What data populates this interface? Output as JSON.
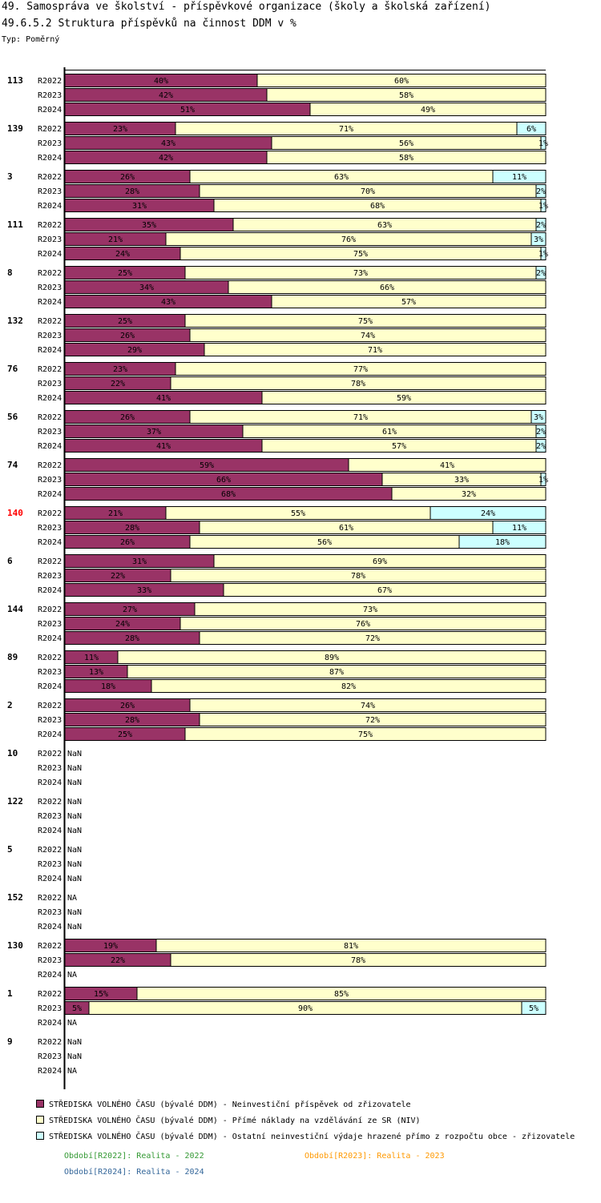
{
  "header": {
    "title": "49. Samospráva ve školství - příspěvkové organizace (školy a školská zařízení)",
    "subtitle": "49.6.5.2 Struktura příspěvků na činnost DDM v %",
    "type_label": "Typ: Poměrný"
  },
  "colors": {
    "series1": "#993366",
    "series2": "#ffffcc",
    "series3": "#ccffff",
    "highlight_group": "#ff0000",
    "period_2022": "#339933",
    "period_2023": "#ff9900",
    "period_2024": "#336699"
  },
  "chart_data": {
    "type": "bar",
    "orientation": "horizontal",
    "stacked": "percent",
    "series": [
      {
        "name": "STŘEDISKA VOLNÉHO ČASU (bývalé DDM)  - Neinvestiční příspěvek od zřizovatele"
      },
      {
        "name": "STŘEDISKA VOLNÉHO ČASU (bývalé DDM)  - Přímé náklady na vzdělávání ze SR (NIV)"
      },
      {
        "name": "STŘEDISKA VOLNÉHO ČASU (bývalé DDM)  - Ostatní neinvestiční výdaje hrazené přímo z rozpočtu obce - zřizovatele"
      }
    ],
    "groups": [
      {
        "label": "113",
        "rows": [
          {
            "period": "R2022",
            "values": [
              40,
              60,
              0
            ]
          },
          {
            "period": "R2023",
            "values": [
              42,
              58,
              0
            ]
          },
          {
            "period": "R2024",
            "values": [
              51,
              49,
              0
            ]
          }
        ]
      },
      {
        "label": "139",
        "rows": [
          {
            "period": "R2022",
            "values": [
              23,
              71,
              6
            ]
          },
          {
            "period": "R2023",
            "values": [
              43,
              56,
              1
            ]
          },
          {
            "period": "R2024",
            "values": [
              42,
              58,
              0
            ]
          }
        ]
      },
      {
        "label": "3",
        "rows": [
          {
            "period": "R2022",
            "values": [
              26,
              63,
              11
            ]
          },
          {
            "period": "R2023",
            "values": [
              28,
              70,
              2
            ]
          },
          {
            "period": "R2024",
            "values": [
              31,
              68,
              1
            ]
          }
        ]
      },
      {
        "label": "111",
        "rows": [
          {
            "period": "R2022",
            "values": [
              35,
              63,
              2
            ]
          },
          {
            "period": "R2023",
            "values": [
              21,
              76,
              3
            ]
          },
          {
            "period": "R2024",
            "values": [
              24,
              75,
              1
            ]
          }
        ]
      },
      {
        "label": "8",
        "rows": [
          {
            "period": "R2022",
            "values": [
              25,
              73,
              2
            ]
          },
          {
            "period": "R2023",
            "values": [
              34,
              66,
              0
            ]
          },
          {
            "period": "R2024",
            "values": [
              43,
              57,
              0
            ]
          }
        ]
      },
      {
        "label": "132",
        "rows": [
          {
            "period": "R2022",
            "values": [
              25,
              75,
              0
            ]
          },
          {
            "period": "R2023",
            "values": [
              26,
              74,
              0
            ]
          },
          {
            "period": "R2024",
            "values": [
              29,
              71,
              0
            ]
          }
        ]
      },
      {
        "label": "76",
        "rows": [
          {
            "period": "R2022",
            "values": [
              23,
              77,
              0
            ]
          },
          {
            "period": "R2023",
            "values": [
              22,
              78,
              0
            ]
          },
          {
            "period": "R2024",
            "values": [
              41,
              59,
              0
            ]
          }
        ]
      },
      {
        "label": "56",
        "rows": [
          {
            "period": "R2022",
            "values": [
              26,
              71,
              3
            ]
          },
          {
            "period": "R2023",
            "values": [
              37,
              61,
              2
            ]
          },
          {
            "period": "R2024",
            "values": [
              41,
              57,
              2
            ]
          }
        ]
      },
      {
        "label": "74",
        "rows": [
          {
            "period": "R2022",
            "values": [
              59,
              41,
              0
            ]
          },
          {
            "period": "R2023",
            "values": [
              66,
              33,
              1
            ]
          },
          {
            "period": "R2024",
            "values": [
              68,
              32,
              0
            ]
          }
        ]
      },
      {
        "label": "140",
        "highlight": true,
        "rows": [
          {
            "period": "R2022",
            "values": [
              21,
              55,
              24
            ]
          },
          {
            "period": "R2023",
            "values": [
              28,
              61,
              11
            ]
          },
          {
            "period": "R2024",
            "values": [
              26,
              56,
              18
            ]
          }
        ]
      },
      {
        "label": "6",
        "rows": [
          {
            "period": "R2022",
            "values": [
              31,
              69,
              0
            ]
          },
          {
            "period": "R2023",
            "values": [
              22,
              78,
              0
            ]
          },
          {
            "period": "R2024",
            "values": [
              33,
              67,
              0
            ]
          }
        ]
      },
      {
        "label": "144",
        "rows": [
          {
            "period": "R2022",
            "values": [
              27,
              73,
              0
            ]
          },
          {
            "period": "R2023",
            "values": [
              24,
              76,
              0
            ]
          },
          {
            "period": "R2024",
            "values": [
              28,
              72,
              0
            ]
          }
        ]
      },
      {
        "label": "89",
        "rows": [
          {
            "period": "R2022",
            "values": [
              11,
              89,
              0
            ]
          },
          {
            "period": "R2023",
            "values": [
              13,
              87,
              0
            ]
          },
          {
            "period": "R2024",
            "values": [
              18,
              82,
              0
            ]
          }
        ]
      },
      {
        "label": "2",
        "rows": [
          {
            "period": "R2022",
            "values": [
              26,
              74,
              0
            ]
          },
          {
            "period": "R2023",
            "values": [
              28,
              72,
              0
            ]
          },
          {
            "period": "R2024",
            "values": [
              25,
              75,
              0
            ]
          }
        ]
      },
      {
        "label": "10",
        "rows": [
          {
            "period": "R2022",
            "na": "NaN"
          },
          {
            "period": "R2023",
            "na": "NaN"
          },
          {
            "period": "R2024",
            "na": "NaN"
          }
        ]
      },
      {
        "label": "122",
        "rows": [
          {
            "period": "R2022",
            "na": "NaN"
          },
          {
            "period": "R2023",
            "na": "NaN"
          },
          {
            "period": "R2024",
            "na": "NaN"
          }
        ]
      },
      {
        "label": "5",
        "rows": [
          {
            "period": "R2022",
            "na": "NaN"
          },
          {
            "period": "R2023",
            "na": "NaN"
          },
          {
            "period": "R2024",
            "na": "NaN"
          }
        ]
      },
      {
        "label": "152",
        "rows": [
          {
            "period": "R2022",
            "na": "NA"
          },
          {
            "period": "R2023",
            "na": "NaN"
          },
          {
            "period": "R2024",
            "na": "NaN"
          }
        ]
      },
      {
        "label": "130",
        "rows": [
          {
            "period": "R2022",
            "values": [
              19,
              81,
              0
            ]
          },
          {
            "period": "R2023",
            "values": [
              22,
              78,
              0
            ]
          },
          {
            "period": "R2024",
            "na": "NA"
          }
        ]
      },
      {
        "label": "1",
        "rows": [
          {
            "period": "R2022",
            "values": [
              15,
              85,
              0
            ]
          },
          {
            "period": "R2023",
            "values": [
              5,
              90,
              5
            ]
          },
          {
            "period": "R2024",
            "na": "NA"
          }
        ]
      },
      {
        "label": "9",
        "rows": [
          {
            "period": "R2022",
            "na": "NaN"
          },
          {
            "period": "R2023",
            "na": "NaN"
          },
          {
            "period": "R2024",
            "na": "NA"
          }
        ]
      }
    ],
    "xlim": [
      0,
      100
    ],
    "value_suffix": "%"
  },
  "legend": {
    "items": [
      "STŘEDISKA VOLNÉHO ČASU (bývalé DDM)  - Neinvestiční příspěvek od zřizovatele",
      "STŘEDISKA VOLNÉHO ČASU (bývalé DDM)  - Přímé náklady na vzdělávání ze SR (NIV)",
      "STŘEDISKA VOLNÉHO ČASU (bývalé DDM)  - Ostatní neinvestiční výdaje hrazené přímo z rozpočtu obce - zřizovatele"
    ],
    "periods": [
      "Období[R2022]: Realita - 2022",
      "Období[R2023]: Realita - 2023",
      "Období[R2024]: Realita - 2024"
    ]
  }
}
